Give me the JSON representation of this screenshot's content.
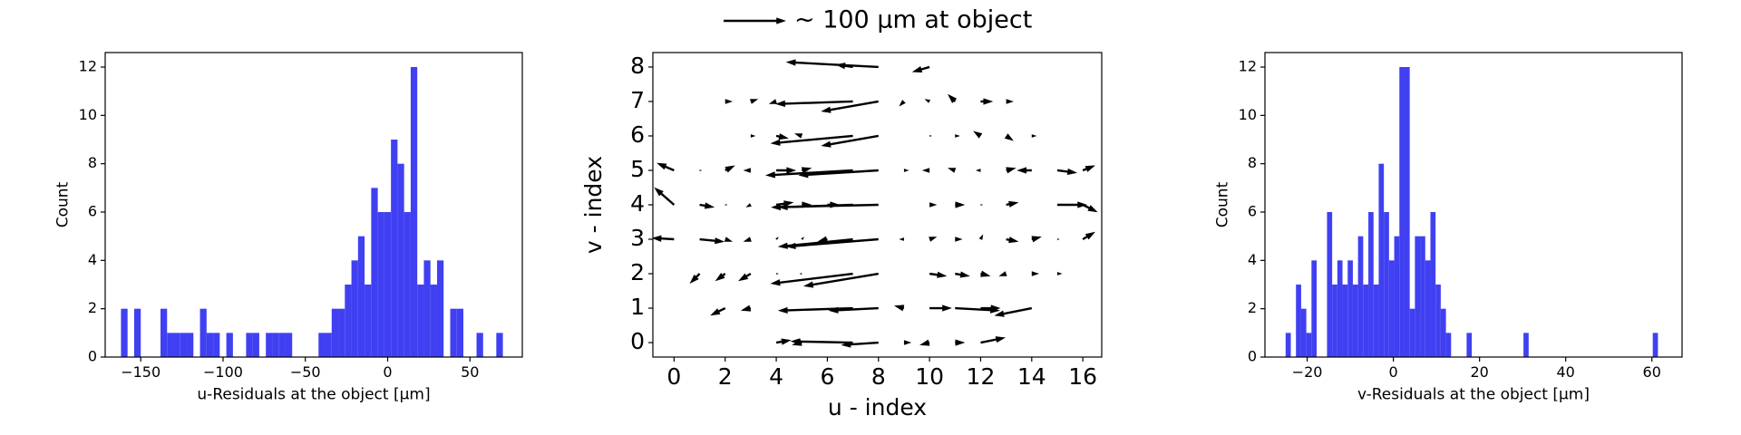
{
  "chart_data": [
    {
      "type": "histogram",
      "xlabel": "u-Residuals at the object [μm]",
      "ylabel": "Count",
      "color": "#4040f2",
      "bins": [
        -162,
        -158,
        -154,
        -150,
        -146,
        -142,
        -138,
        -134,
        -130,
        -126,
        -122,
        -118,
        -114,
        -110,
        -106,
        -102,
        -98,
        -94,
        -90,
        -86,
        -82,
        -78,
        -74,
        -70,
        -66,
        -62,
        -58,
        -54,
        -50,
        -46,
        -42,
        -38,
        -34,
        -30,
        -26,
        -22,
        -18,
        -14,
        -10,
        -6,
        -2,
        2,
        6,
        10,
        14,
        18,
        22,
        26,
        30,
        34,
        38,
        42,
        46,
        50,
        54,
        58,
        62,
        66,
        70,
        74
      ],
      "values": [
        2,
        0,
        2,
        0,
        0,
        0,
        2,
        1,
        1,
        1,
        1,
        0,
        2,
        1,
        1,
        0,
        1,
        0,
        0,
        1,
        1,
        0,
        1,
        1,
        1,
        1,
        0,
        0,
        0,
        0,
        1,
        1,
        2,
        2,
        3,
        4,
        5,
        3,
        7,
        6,
        6,
        9,
        8,
        6,
        12,
        3,
        4,
        3,
        4,
        0,
        2,
        2,
        0,
        0,
        1,
        0,
        0,
        1,
        0
      ],
      "xlim": [
        -171.6,
        81.8
      ],
      "ylim": [
        0,
        12.6
      ],
      "xticks": [
        {
          "value": -150,
          "label": "−150"
        },
        {
          "value": -100,
          "label": "−100"
        },
        {
          "value": -50,
          "label": "−50"
        },
        0,
        50
      ],
      "yticks": [
        0,
        2,
        4,
        6,
        8,
        10,
        12
      ]
    },
    {
      "type": "quiver",
      "xlabel": "u - index",
      "ylabel": "v - index",
      "color": "#000000",
      "key": {
        "value": 100,
        "label": "~ 100 μm at object"
      },
      "x": [
        4,
        5,
        7,
        8,
        9,
        10,
        11,
        12,
        2,
        3,
        7,
        8,
        9,
        10,
        11,
        12,
        14,
        1,
        2,
        3,
        4,
        5,
        7,
        8,
        10,
        11,
        12,
        13,
        14,
        15,
        0,
        1,
        2,
        3,
        4,
        5,
        6,
        7,
        8,
        9,
        10,
        11,
        12,
        13,
        14,
        15,
        16,
        0,
        1,
        2,
        3,
        4,
        5,
        6,
        7,
        8,
        10,
        11,
        12,
        13,
        15,
        16,
        0,
        1,
        2,
        3,
        4,
        5,
        7,
        8,
        9,
        10,
        11,
        12,
        13,
        14,
        15,
        16,
        3,
        4,
        5,
        7,
        8,
        10,
        11,
        12,
        13,
        14,
        2,
        3,
        4,
        7,
        8,
        9,
        10,
        11,
        12,
        13,
        7,
        8,
        10
      ],
      "y": [
        0,
        0,
        0,
        0,
        0,
        0,
        0,
        0,
        1,
        1,
        1,
        1,
        1,
        1,
        1,
        1,
        1,
        2,
        2,
        2,
        2,
        2,
        2,
        2,
        2,
        2,
        2,
        2,
        2,
        2,
        3,
        3,
        3,
        3,
        3,
        3,
        3,
        3,
        3,
        3,
        3,
        3,
        3,
        3,
        3,
        3,
        3,
        4,
        4,
        4,
        4,
        4,
        4,
        4,
        4,
        4,
        4,
        4,
        4,
        4,
        4,
        4,
        5,
        5,
        5,
        5,
        5,
        5,
        5,
        5,
        5,
        5,
        5,
        5,
        5,
        5,
        5,
        5,
        6,
        6,
        6,
        6,
        6,
        6,
        6,
        6,
        6,
        6,
        7,
        7,
        7,
        7,
        7,
        7,
        7,
        7,
        7,
        7,
        8,
        8,
        8
      ],
      "u": [
        24,
        -16,
        -100,
        -60,
        12,
        -16,
        16,
        40,
        -24,
        -16,
        -120,
        -80,
        -16,
        36,
        72,
        32,
        -60,
        -16,
        -16,
        -20,
        4,
        -4,
        -132,
        -120,
        28,
        24,
        16,
        -12,
        12,
        8,
        -36,
        40,
        12,
        -12,
        4,
        4,
        -16,
        -120,
        -148,
        -8,
        12,
        12,
        4,
        20,
        16,
        4,
        20,
        -32,
        24,
        4,
        -8,
        28,
        16,
        20,
        -120,
        -172,
        12,
        16,
        4,
        20,
        48,
        24,
        -28,
        4,
        16,
        -12,
        32,
        16,
        -140,
        -128,
        8,
        -12,
        -12,
        -8,
        16,
        -24,
        32,
        20,
        8,
        20,
        -12,
        -132,
        -92,
        4,
        8,
        -12,
        12,
        8,
        12,
        12,
        -12,
        -124,
        -92,
        -8,
        -8,
        -12,
        20,
        12,
        -28,
        -148,
        -28
      ],
      "v": [
        4,
        -4,
        2,
        -4,
        0,
        -4,
        0,
        8,
        -12,
        -4,
        -4,
        -4,
        4,
        0,
        -4,
        0,
        -12,
        -16,
        -12,
        -12,
        0,
        0,
        -16,
        -20,
        -4,
        -4,
        -4,
        -4,
        0,
        0,
        2,
        -4,
        -4,
        -4,
        4,
        4,
        -4,
        -12,
        -12,
        0,
        4,
        0,
        8,
        -4,
        4,
        0,
        12,
        28,
        -4,
        0,
        -4,
        4,
        0,
        0,
        -4,
        -4,
        0,
        0,
        0,
        4,
        0,
        -12,
        12,
        0,
        8,
        0,
        0,
        4,
        -8,
        -8,
        0,
        0,
        4,
        0,
        4,
        0,
        -4,
        8,
        0,
        -4,
        4,
        -12,
        -16,
        0,
        0,
        8,
        -8,
        0,
        0,
        4,
        -4,
        -4,
        -16,
        -8,
        4,
        12,
        0,
        0,
        4,
        8,
        -8
      ],
      "xlim": [
        -0.83,
        16.74
      ],
      "ylim": [
        -0.42,
        8.42
      ],
      "xticks": [
        0,
        2,
        4,
        6,
        8,
        10,
        12,
        14,
        16
      ],
      "yticks": [
        0,
        1,
        2,
        3,
        4,
        5,
        6,
        7,
        8
      ]
    },
    {
      "type": "histogram",
      "xlabel": "v-Residuals at the object [μm]",
      "ylabel": "Count",
      "color": "#4040f2",
      "bins": [
        -25,
        -23.8,
        -22.6,
        -21.4,
        -20.2,
        -19,
        -17.8,
        -16.6,
        -15.4,
        -14.2,
        -13,
        -11.8,
        -10.6,
        -9.4,
        -8.2,
        -7,
        -5.8,
        -4.6,
        -3.4,
        -2.2,
        -1,
        0.2,
        1.4,
        2.6,
        3.8,
        5,
        6.2,
        7.4,
        8.6,
        9.8,
        11,
        12.2,
        13.4,
        14.6,
        15.8,
        17,
        18.2,
        19.4,
        20.6,
        21.8,
        23,
        24.2,
        25.4,
        26.6,
        27.8,
        29,
        30.2,
        31.4,
        32.6,
        33.8,
        35,
        36.2,
        37.4,
        38.6,
        39.8,
        41,
        42.2,
        43.4,
        44.6,
        45.8,
        47,
        48.2,
        49.4,
        50.6,
        51.8,
        53,
        54.2,
        55.4,
        56.6,
        57.8,
        59,
        60.2,
        61.4,
        62.6
      ],
      "values": [
        1,
        0,
        3,
        2,
        1,
        4,
        0,
        0,
        6,
        3,
        4,
        3,
        4,
        3,
        5,
        3,
        6,
        3,
        8,
        6,
        4,
        5,
        12,
        12,
        2,
        5,
        5,
        4,
        6,
        3,
        2,
        1,
        0,
        0,
        0,
        1,
        0,
        0,
        0,
        0,
        0,
        0,
        0,
        0,
        0,
        0,
        1,
        0,
        0,
        0,
        0,
        0,
        0,
        0,
        0,
        0,
        0,
        0,
        0,
        0,
        0,
        0,
        0,
        0,
        0,
        0,
        0,
        0,
        0,
        0,
        0,
        1,
        0
      ],
      "xlim": [
        -29.8,
        67
      ],
      "ylim": [
        0,
        12.6
      ],
      "xticks": [
        {
          "value": -20,
          "label": "−20"
        },
        0,
        20,
        40,
        60
      ],
      "yticks": [
        0,
        2,
        4,
        6,
        8,
        10,
        12
      ]
    }
  ]
}
